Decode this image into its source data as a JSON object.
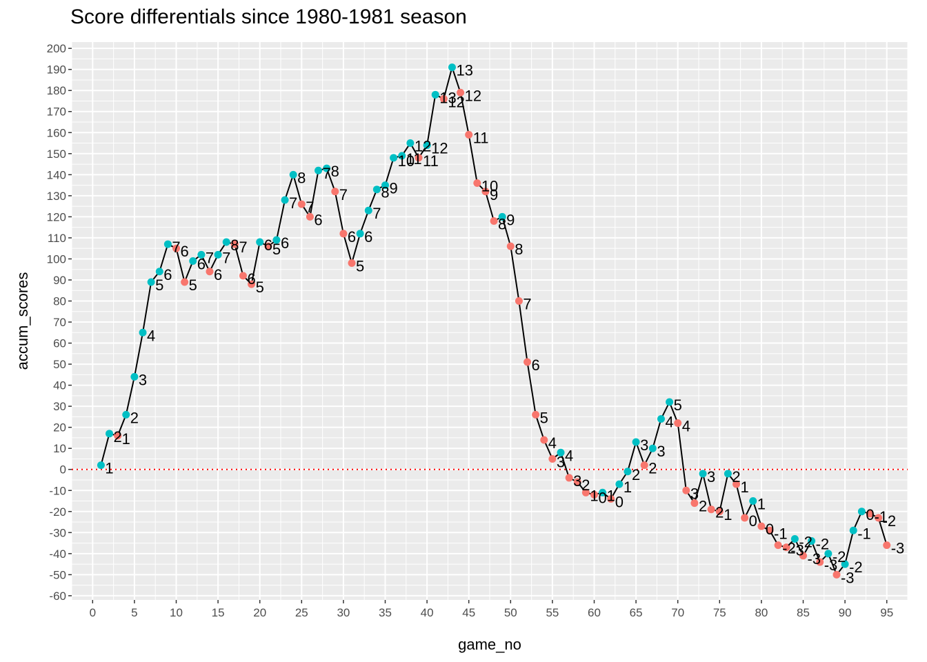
{
  "chart_data": {
    "type": "line",
    "title": "Score differentials since 1980-1981 season",
    "xlabel": "game_no",
    "ylabel": "accum_scores",
    "xlim": [
      -2.5,
      97.5
    ],
    "ylim": [
      -62,
      203
    ],
    "x_ticks": [
      0,
      5,
      10,
      15,
      20,
      25,
      30,
      35,
      40,
      45,
      50,
      55,
      60,
      65,
      70,
      75,
      80,
      85,
      90,
      95
    ],
    "y_ticks": [
      -60,
      -50,
      -40,
      -30,
      -20,
      -10,
      0,
      10,
      20,
      30,
      40,
      50,
      60,
      70,
      80,
      90,
      100,
      110,
      120,
      130,
      140,
      150,
      160,
      170,
      180,
      190,
      200
    ],
    "reference_line": {
      "y": 0,
      "style": "dotted",
      "color": "#FF0000"
    },
    "grid": true,
    "colors": {
      "teal": "#00BFC4",
      "red": "#F8766D",
      "line": "#000000",
      "panel": "#EBEBEB",
      "grid": "#FFFFFF"
    },
    "points": [
      {
        "x": 1,
        "y": 2,
        "label": "1",
        "c": "teal"
      },
      {
        "x": 2,
        "y": 17,
        "label": "2",
        "c": "teal"
      },
      {
        "x": 3,
        "y": 16,
        "label": "1",
        "c": "red"
      },
      {
        "x": 4,
        "y": 26,
        "label": "2",
        "c": "teal"
      },
      {
        "x": 5,
        "y": 44,
        "label": "3",
        "c": "teal"
      },
      {
        "x": 6,
        "y": 65,
        "label": "4",
        "c": "teal"
      },
      {
        "x": 7,
        "y": 89,
        "label": "5",
        "c": "teal"
      },
      {
        "x": 8,
        "y": 94,
        "label": "6",
        "c": "teal"
      },
      {
        "x": 9,
        "y": 107,
        "label": "7",
        "c": "teal"
      },
      {
        "x": 10,
        "y": 105,
        "label": "6",
        "c": "red"
      },
      {
        "x": 11,
        "y": 89,
        "label": "5",
        "c": "red"
      },
      {
        "x": 12,
        "y": 99,
        "label": "6",
        "c": "teal"
      },
      {
        "x": 13,
        "y": 102,
        "label": "7",
        "c": "teal"
      },
      {
        "x": 14,
        "y": 94,
        "label": "6",
        "c": "red"
      },
      {
        "x": 15,
        "y": 102,
        "label": "7",
        "c": "teal"
      },
      {
        "x": 16,
        "y": 108,
        "label": "8",
        "c": "teal"
      },
      {
        "x": 17,
        "y": 107,
        "label": "7",
        "c": "red"
      },
      {
        "x": 18,
        "y": 92,
        "label": "6",
        "c": "red"
      },
      {
        "x": 19,
        "y": 88,
        "label": "5",
        "c": "red"
      },
      {
        "x": 20,
        "y": 108,
        "label": "6",
        "c": "teal"
      },
      {
        "x": 21,
        "y": 106,
        "label": "5",
        "c": "red"
      },
      {
        "x": 22,
        "y": 109,
        "label": "6",
        "c": "teal"
      },
      {
        "x": 23,
        "y": 128,
        "label": "7",
        "c": "teal"
      },
      {
        "x": 24,
        "y": 140,
        "label": "8",
        "c": "teal"
      },
      {
        "x": 25,
        "y": 126,
        "label": "7",
        "c": "red"
      },
      {
        "x": 26,
        "y": 120,
        "label": "6",
        "c": "red"
      },
      {
        "x": 27,
        "y": 142,
        "label": "7",
        "c": "teal"
      },
      {
        "x": 28,
        "y": 143,
        "label": "8",
        "c": "teal"
      },
      {
        "x": 29,
        "y": 132,
        "label": "7",
        "c": "red"
      },
      {
        "x": 30,
        "y": 112,
        "label": "6",
        "c": "red"
      },
      {
        "x": 31,
        "y": 98,
        "label": "5",
        "c": "red"
      },
      {
        "x": 32,
        "y": 112,
        "label": "6",
        "c": "teal"
      },
      {
        "x": 33,
        "y": 123,
        "label": "7",
        "c": "teal"
      },
      {
        "x": 34,
        "y": 133,
        "label": "8",
        "c": "teal"
      },
      {
        "x": 35,
        "y": 135,
        "label": "9",
        "c": "teal"
      },
      {
        "x": 36,
        "y": 148,
        "label": "10",
        "c": "teal"
      },
      {
        "x": 37,
        "y": 149,
        "label": "11",
        "c": "teal"
      },
      {
        "x": 38,
        "y": 155,
        "label": "12",
        "c": "teal"
      },
      {
        "x": 39,
        "y": 148,
        "label": "11",
        "c": "red"
      },
      {
        "x": 40,
        "y": 154,
        "label": "12",
        "c": "teal"
      },
      {
        "x": 41,
        "y": 178,
        "label": "13",
        "c": "teal"
      },
      {
        "x": 42,
        "y": 176,
        "label": "12",
        "c": "red"
      },
      {
        "x": 43,
        "y": 191,
        "label": "13",
        "c": "teal"
      },
      {
        "x": 44,
        "y": 179,
        "label": "12",
        "c": "red"
      },
      {
        "x": 45,
        "y": 159,
        "label": "11",
        "c": "red"
      },
      {
        "x": 46,
        "y": 136,
        "label": "10",
        "c": "red"
      },
      {
        "x": 47,
        "y": 132,
        "label": "9",
        "c": "red"
      },
      {
        "x": 48,
        "y": 118,
        "label": "8",
        "c": "red"
      },
      {
        "x": 49,
        "y": 120,
        "label": "9",
        "c": "teal"
      },
      {
        "x": 50,
        "y": 106,
        "label": "8",
        "c": "red"
      },
      {
        "x": 51,
        "y": 80,
        "label": "7",
        "c": "red"
      },
      {
        "x": 52,
        "y": 51,
        "label": "6",
        "c": "red"
      },
      {
        "x": 53,
        "y": 26,
        "label": "5",
        "c": "red"
      },
      {
        "x": 54,
        "y": 14,
        "label": "4",
        "c": "red"
      },
      {
        "x": 55,
        "y": 5,
        "label": "3",
        "c": "red"
      },
      {
        "x": 56,
        "y": 8,
        "label": "4",
        "c": "teal"
      },
      {
        "x": 57,
        "y": -4,
        "label": "3",
        "c": "red"
      },
      {
        "x": 58,
        "y": -6,
        "label": "2",
        "c": "red"
      },
      {
        "x": 59,
        "y": -11,
        "label": "1",
        "c": "red"
      },
      {
        "x": 60,
        "y": -12,
        "label": "0",
        "c": "red"
      },
      {
        "x": 61,
        "y": -11,
        "label": "1",
        "c": "teal"
      },
      {
        "x": 62,
        "y": -14,
        "label": "0",
        "c": "red"
      },
      {
        "x": 63,
        "y": -7,
        "label": "1",
        "c": "teal"
      },
      {
        "x": 64,
        "y": -1,
        "label": "2",
        "c": "teal"
      },
      {
        "x": 65,
        "y": 13,
        "label": "3",
        "c": "teal"
      },
      {
        "x": 66,
        "y": 2,
        "label": "2",
        "c": "red"
      },
      {
        "x": 67,
        "y": 10,
        "label": "3",
        "c": "teal"
      },
      {
        "x": 68,
        "y": 24,
        "label": "4",
        "c": "teal"
      },
      {
        "x": 69,
        "y": 32,
        "label": "5",
        "c": "teal"
      },
      {
        "x": 70,
        "y": 22,
        "label": "4",
        "c": "red"
      },
      {
        "x": 71,
        "y": -10,
        "label": "3",
        "c": "red"
      },
      {
        "x": 72,
        "y": -16,
        "label": "2",
        "c": "red"
      },
      {
        "x": 73,
        "y": -2,
        "label": "3",
        "c": "teal"
      },
      {
        "x": 74,
        "y": -19,
        "label": "2",
        "c": "red"
      },
      {
        "x": 75,
        "y": -20,
        "label": "1",
        "c": "red"
      },
      {
        "x": 76,
        "y": -2,
        "label": "2",
        "c": "teal"
      },
      {
        "x": 77,
        "y": -7,
        "label": "1",
        "c": "red"
      },
      {
        "x": 78,
        "y": -23,
        "label": "0",
        "c": "red"
      },
      {
        "x": 79,
        "y": -15,
        "label": "1",
        "c": "teal"
      },
      {
        "x": 80,
        "y": -27,
        "label": "0",
        "c": "red"
      },
      {
        "x": 81,
        "y": -29,
        "label": "-1",
        "c": "red"
      },
      {
        "x": 82,
        "y": -36,
        "label": "-2",
        "c": "red"
      },
      {
        "x": 83,
        "y": -37,
        "label": "-3",
        "c": "red"
      },
      {
        "x": 84,
        "y": -33,
        "label": "-2",
        "c": "teal"
      },
      {
        "x": 85,
        "y": -41,
        "label": "-3",
        "c": "red"
      },
      {
        "x": 86,
        "y": -34,
        "label": "-2",
        "c": "teal"
      },
      {
        "x": 87,
        "y": -44,
        "label": "-3",
        "c": "red"
      },
      {
        "x": 88,
        "y": -40,
        "label": "-2",
        "c": "teal"
      },
      {
        "x": 89,
        "y": -50,
        "label": "-3",
        "c": "red"
      },
      {
        "x": 90,
        "y": -45,
        "label": "-2",
        "c": "teal"
      },
      {
        "x": 91,
        "y": -29,
        "label": "-1",
        "c": "teal"
      },
      {
        "x": 92,
        "y": -20,
        "label": "0",
        "c": "teal"
      },
      {
        "x": 93,
        "y": -21,
        "label": "-1",
        "c": "red"
      },
      {
        "x": 94,
        "y": -23,
        "label": "-2",
        "c": "red"
      },
      {
        "x": 95,
        "y": -36,
        "label": "-3",
        "c": "red"
      }
    ]
  }
}
